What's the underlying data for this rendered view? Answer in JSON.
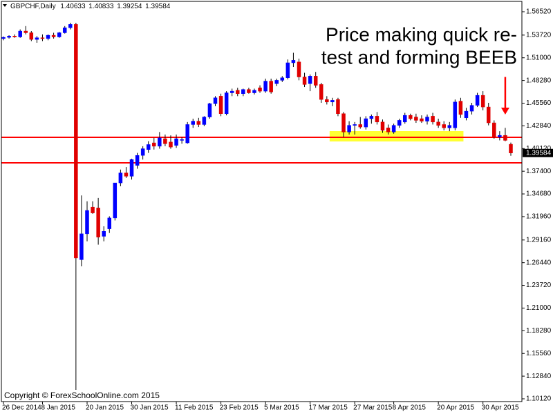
{
  "chart_data": {
    "type": "candlestick",
    "title": "GBPCHF,Daily",
    "categories": [
      "26 Dec 2014",
      null,
      null,
      null,
      null,
      null,
      null,
      "8 Jan 2015",
      null,
      null,
      null,
      null,
      null,
      null,
      null,
      "20 Jan 2015",
      null,
      null,
      null,
      null,
      null,
      null,
      null,
      "30 Jan 2015",
      null,
      null,
      null,
      null,
      null,
      null,
      null,
      "11 Feb 2015",
      null,
      null,
      null,
      null,
      null,
      null,
      null,
      "23 Feb 2015",
      null,
      null,
      null,
      null,
      null,
      null,
      null,
      "5 Mar 2015",
      null,
      null,
      null,
      null,
      null,
      null,
      null,
      "17 Mar 2015",
      null,
      null,
      null,
      null,
      null,
      null,
      null,
      "27 Mar 2015",
      null,
      null,
      null,
      null,
      null,
      null,
      "8 Apr 2015",
      null,
      null,
      null,
      null,
      null,
      null,
      null,
      "20 Apr 2015",
      null,
      null,
      null,
      null,
      null,
      null,
      null,
      "30 Apr 2015",
      null,
      null,
      null,
      null,
      null
    ],
    "open": [
      1.533,
      1.5345,
      1.536,
      1.535,
      1.542,
      1.54,
      1.532,
      1.534,
      1.533,
      1.537,
      1.535,
      1.54,
      1.546,
      1.55,
      1.268,
      1.299,
      1.331,
      1.33,
      1.296,
      1.305,
      1.318,
      1.36,
      1.372,
      1.368,
      1.381,
      1.393,
      1.4,
      1.408,
      1.404,
      1.413,
      1.409,
      1.405,
      1.411,
      1.408,
      1.43,
      1.434,
      1.43,
      1.439,
      1.455,
      1.464,
      1.443,
      1.468,
      1.471,
      1.467,
      1.472,
      1.468,
      1.474,
      1.47,
      1.482,
      1.479,
      1.483,
      1.486,
      1.504,
      1.505,
      1.487,
      1.479,
      1.488,
      1.478,
      1.46,
      1.457,
      1.46,
      1.443,
      1.421,
      1.429,
      1.43,
      1.427,
      1.437,
      1.44,
      1.433,
      1.426,
      1.421,
      1.429,
      1.433,
      1.441,
      1.439,
      1.437,
      1.434,
      1.44,
      1.433,
      1.43,
      1.426,
      1.426,
      1.458,
      1.438,
      1.446,
      1.453,
      1.465,
      1.451,
      1.432,
      1.415,
      1.417,
      1.40633
    ],
    "high": [
      1.5355,
      1.537,
      1.538,
      1.544,
      1.548,
      1.542,
      1.536,
      1.538,
      1.538,
      1.54,
      1.541,
      1.548,
      1.552,
      1.552,
      1.345,
      1.338,
      1.338,
      1.342,
      1.308,
      1.32,
      1.36,
      1.376,
      1.379,
      1.389,
      1.396,
      1.404,
      1.41,
      1.414,
      1.421,
      1.418,
      1.417,
      1.418,
      1.415,
      1.433,
      1.437,
      1.438,
      1.44,
      1.456,
      1.464,
      1.467,
      1.47,
      1.473,
      1.474,
      1.473,
      1.474,
      1.473,
      1.477,
      1.485,
      1.485,
      1.485,
      1.488,
      1.508,
      1.516,
      1.509,
      1.492,
      1.49,
      1.493,
      1.48,
      1.464,
      1.462,
      1.462,
      1.445,
      1.434,
      1.433,
      1.439,
      1.44,
      1.442,
      1.445,
      1.436,
      1.43,
      1.431,
      1.437,
      1.444,
      1.443,
      1.443,
      1.441,
      1.442,
      1.444,
      1.437,
      1.434,
      1.433,
      1.46,
      1.462,
      1.45,
      1.456,
      1.468,
      1.47,
      1.456,
      1.435,
      1.422,
      1.426,
      1.40833
    ],
    "low": [
      1.531,
      1.533,
      1.534,
      1.534,
      1.538,
      1.53,
      1.528,
      1.53,
      1.531,
      1.533,
      1.534,
      1.539,
      1.544,
      1.112,
      1.26,
      1.29,
      1.323,
      1.286,
      1.29,
      1.3,
      1.315,
      1.356,
      1.366,
      1.364,
      1.377,
      1.388,
      1.396,
      1.4,
      1.401,
      1.404,
      1.401,
      1.402,
      1.407,
      1.407,
      1.426,
      1.427,
      1.428,
      1.437,
      1.452,
      1.44,
      1.441,
      1.464,
      1.464,
      1.464,
      1.467,
      1.466,
      1.468,
      1.468,
      1.467,
      1.476,
      1.481,
      1.484,
      1.499,
      1.483,
      1.475,
      1.47,
      1.474,
      1.456,
      1.454,
      1.452,
      1.44,
      1.415,
      1.418,
      1.418,
      1.425,
      1.424,
      1.431,
      1.43,
      1.42,
      1.418,
      1.419,
      1.426,
      1.431,
      1.435,
      1.432,
      1.432,
      1.43,
      1.43,
      1.426,
      1.423,
      1.422,
      1.423,
      1.438,
      1.435,
      1.442,
      1.451,
      1.447,
      1.429,
      1.413,
      1.411,
      1.41,
      1.39254
    ],
    "close": [
      1.5345,
      1.536,
      1.535,
      1.542,
      1.54,
      1.532,
      1.534,
      1.533,
      1.537,
      1.535,
      1.54,
      1.546,
      1.55,
      1.27,
      1.299,
      1.327,
      1.324,
      1.295,
      1.302,
      1.318,
      1.36,
      1.372,
      1.368,
      1.388,
      1.393,
      1.401,
      1.406,
      1.404,
      1.414,
      1.407,
      1.403,
      1.413,
      1.412,
      1.43,
      1.434,
      1.43,
      1.439,
      1.455,
      1.462,
      1.443,
      1.468,
      1.47,
      1.467,
      1.472,
      1.468,
      1.471,
      1.47,
      1.482,
      1.469,
      1.483,
      1.486,
      1.504,
      1.507,
      1.487,
      1.478,
      1.488,
      1.477,
      1.46,
      1.457,
      1.459,
      1.443,
      1.421,
      1.429,
      1.43,
      1.427,
      1.437,
      1.44,
      1.433,
      1.423,
      1.421,
      1.429,
      1.435,
      1.441,
      1.437,
      1.435,
      1.434,
      1.439,
      1.433,
      1.429,
      1.426,
      1.429,
      1.457,
      1.442,
      1.446,
      1.453,
      1.465,
      1.451,
      1.432,
      1.415,
      1.417,
      1.411,
      1.39584
    ],
    "up_color": "#0000ff",
    "down_color": "#e00000",
    "wick_color": "#000000",
    "ylim": [
      1.0979,
      1.5776
    ],
    "yticks": [
      {
        "value": 1.5652,
        "label": "1.56520"
      },
      {
        "value": 1.5372,
        "label": "1.53720"
      },
      {
        "value": 1.51,
        "label": "1.51000"
      },
      {
        "value": 1.4828,
        "label": "1.48280"
      },
      {
        "value": 1.4556,
        "label": "1.45560"
      },
      {
        "value": 1.4284,
        "label": "1.42840"
      },
      {
        "value": 1.4012,
        "label": "1.40120"
      },
      {
        "value": 1.374,
        "label": "1.37400"
      },
      {
        "value": 1.3468,
        "label": "1.34680"
      },
      {
        "value": 1.3196,
        "label": "1.31960"
      },
      {
        "value": 1.2916,
        "label": "1.29160"
      },
      {
        "value": 1.2644,
        "label": "1.26440"
      },
      {
        "value": 1.2372,
        "label": "1.23720"
      },
      {
        "value": 1.21,
        "label": "1.21000"
      },
      {
        "value": 1.1828,
        "label": "1.18280"
      },
      {
        "value": 1.1556,
        "label": "1.15560"
      },
      {
        "value": 1.1284,
        "label": "1.12840"
      },
      {
        "value": 1.1012,
        "label": "1.10120"
      }
    ],
    "grid": false,
    "levels": [
      {
        "value": 1.4147,
        "color": "#ff0000"
      },
      {
        "value": 1.3841,
        "color": "#ff0000"
      }
    ],
    "zone": {
      "start": 59,
      "end": 82,
      "ylim": [
        1.4097,
        1.4221
      ],
      "color": "#ffff33"
    },
    "arrow": {
      "at": 90,
      "from": 1.487,
      "to": 1.442,
      "color": "#ff0000"
    },
    "annotation": [
      "Price making quick re-",
      "test and forming BEEB"
    ],
    "annotation_color": "#ff0000",
    "copyright": "Copyright © ForexSchoolOnline.com 2015"
  }
}
